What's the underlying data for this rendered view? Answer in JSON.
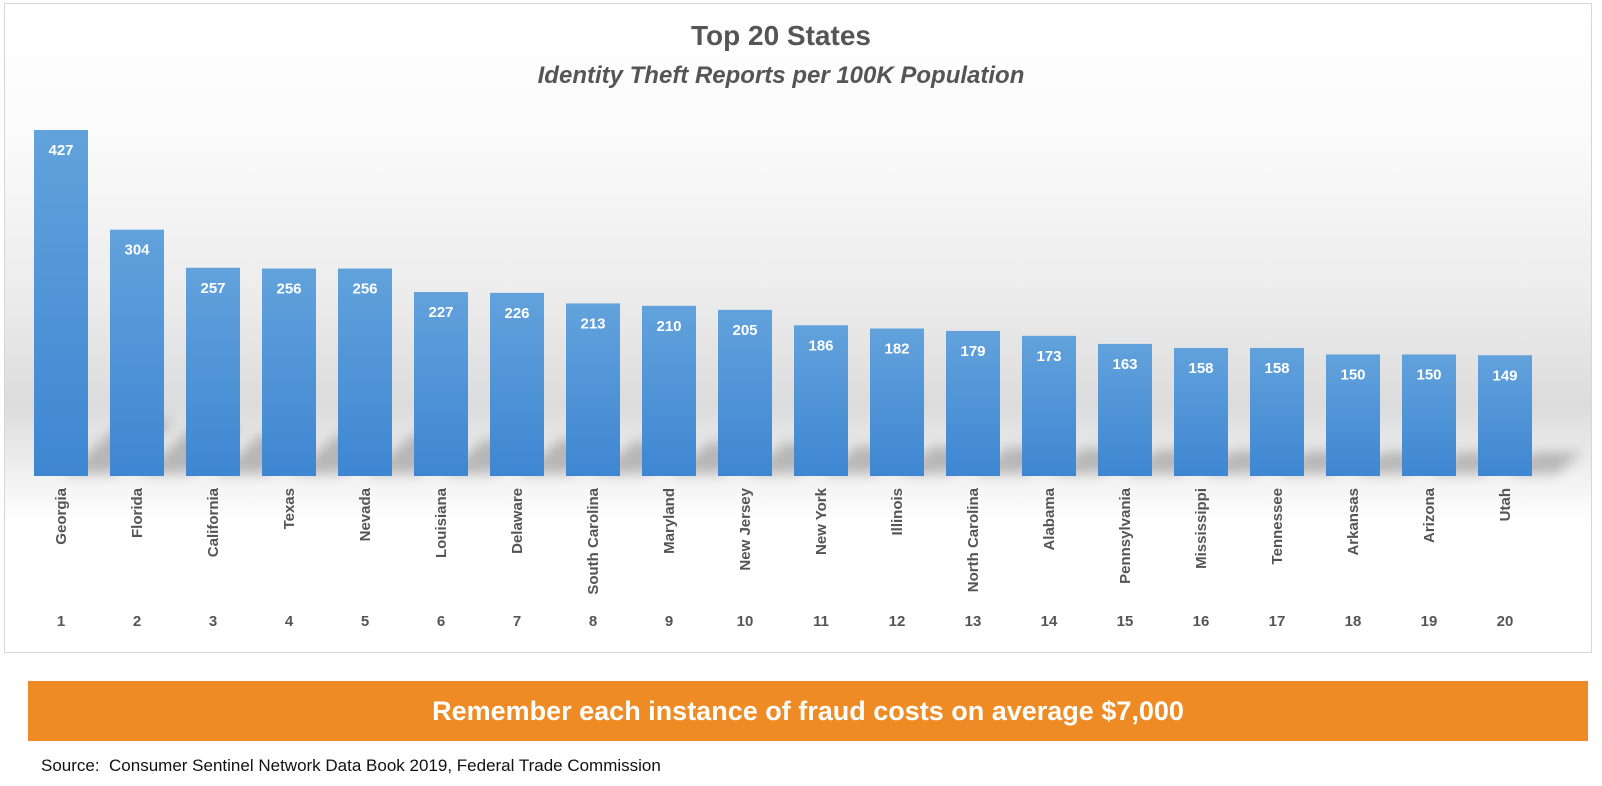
{
  "chart_data": {
    "type": "bar",
    "title": "Top 20 States",
    "subtitle": "Identity Theft Reports per 100K Population",
    "categories": [
      "Georgia",
      "Florida",
      "California",
      "Texas",
      "Nevada",
      "Louisiana",
      "Delaware",
      "South Carolina",
      "Maryland",
      "New Jersey",
      "New York",
      "Illinois",
      "North Carolina",
      "Alabama",
      "Pennsylvania",
      "Mississippi",
      "Tennessee",
      "Arkansas",
      "Arizona",
      "Utah"
    ],
    "ranks": [
      "1",
      "2",
      "3",
      "4",
      "5",
      "6",
      "7",
      "8",
      "9",
      "10",
      "11",
      "12",
      "13",
      "14",
      "15",
      "16",
      "17",
      "18",
      "19",
      "20"
    ],
    "values": [
      427,
      304,
      257,
      256,
      256,
      227,
      226,
      213,
      210,
      205,
      186,
      182,
      179,
      173,
      163,
      158,
      158,
      150,
      150,
      149
    ],
    "data_labels": true,
    "grid": false,
    "legend": "none",
    "ylim": [
      0,
      427
    ],
    "bar_color": "#4a90d9",
    "label_color": "#ffffff"
  },
  "banner": {
    "text": "Remember each instance of fraud costs on average $7,000",
    "color": "#ef8b24"
  },
  "source": {
    "text": "Source:  Consumer Sentinel Network Data Book 2019, Federal Trade Commission"
  }
}
